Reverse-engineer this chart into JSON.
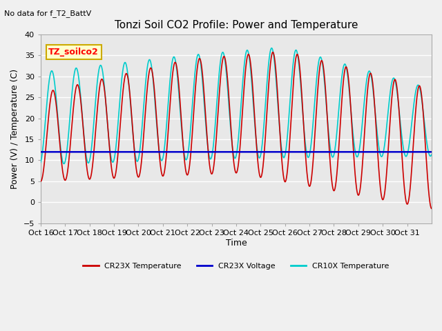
{
  "title": "Tonzi Soil CO2 Profile: Power and Temperature",
  "subtitle": "No data for f_T2_BattV",
  "ylabel": "Power (V) / Temperature (C)",
  "xlabel": "Time",
  "ylim": [
    -5,
    40
  ],
  "yticks": [
    -5,
    0,
    5,
    10,
    15,
    20,
    25,
    30,
    35,
    40
  ],
  "x_tick_labels": [
    "Oct 16",
    "Oct 17",
    "Oct 18",
    "Oct 19",
    "Oct 20",
    "Oct 21",
    "Oct 22",
    "Oct 23",
    "Oct 24",
    "Oct 25",
    "Oct 26",
    "Oct 27",
    "Oct 28",
    "Oct 29",
    "Oct 30",
    "Oct 31"
  ],
  "legend_label": "TZ_soilco2",
  "cr23x_color": "#cc0000",
  "cr10x_color": "#00cccc",
  "voltage_color": "#0000cc",
  "voltage_value": 12.0,
  "fig_bg_color": "#f0f0f0",
  "plot_bg_color": "#e8e8e8",
  "grid_color": "#ffffff"
}
